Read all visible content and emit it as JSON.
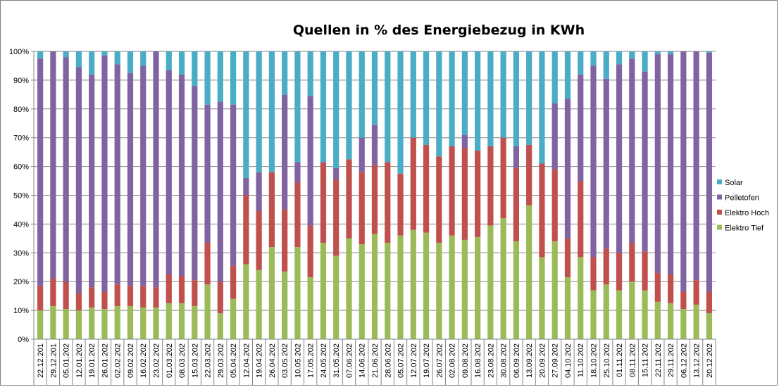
{
  "chart_data": {
    "type": "bar",
    "stacked": "percent",
    "title": "Quellen in % des Energiebezug in KWh",
    "xlabel": "",
    "ylabel": "",
    "ylim": [
      0,
      100
    ],
    "y_ticks": [
      "0%",
      "10%",
      "20%",
      "30%",
      "40%",
      "50%",
      "60%",
      "70%",
      "80%",
      "90%",
      "100%"
    ],
    "grid": true,
    "legend_position": "right",
    "categories": [
      "22.12.201",
      "29.12.201",
      "05.01.202",
      "12.01.202",
      "19.01.202",
      "26.01.202",
      "02.02.202",
      "09.02.202",
      "16.02.202",
      "23.02.202",
      "01.03.202",
      "08.03.202",
      "15.03.202",
      "22.03.202",
      "29.03.202",
      "05.04.202",
      "12.04.202",
      "19.04.202",
      "26.04.202",
      "03.05.202",
      "10.05.202",
      "17.05.202",
      "24.05.202",
      "31.05.202",
      "07.06.202",
      "14.06.202",
      "21.06.202",
      "28.06.202",
      "05.07.202",
      "12.07.202",
      "19.07.202",
      "26.07.202",
      "02.08.202",
      "09.08.202",
      "16.08.202",
      "23.08.202",
      "30.08.202",
      "06.09.202",
      "13.09.202",
      "20.09.202",
      "27.09.202",
      "04.10.202",
      "11.10.202",
      "18.10.202",
      "25.10.202",
      "01.11.202",
      "08.11.202",
      "15.11.202",
      "22.11.202",
      "29.11.202",
      "06.12.202",
      "13.12.202",
      "20.12.202"
    ],
    "series": [
      {
        "name": "Elektro Tief",
        "color": "#9bbb59",
        "values": [
          10,
          11.5,
          10.5,
          10,
          11,
          10.5,
          11.5,
          11.5,
          11,
          11,
          12.5,
          12.5,
          11.5,
          19,
          9,
          14,
          26,
          24,
          32,
          23.5,
          32,
          21.5,
          33.5,
          29,
          35,
          33,
          36.5,
          33.5,
          36,
          38,
          37,
          33.5,
          36,
          34.5,
          35.5,
          39.5,
          42,
          34,
          46.5,
          28.5,
          34,
          21.5,
          28.5,
          17,
          19,
          17,
          20,
          17,
          13,
          12.5,
          10.5,
          12,
          9
        ]
      },
      {
        "name": "Elektro Hoch",
        "color": "#c0504d",
        "values": [
          8.5,
          9.5,
          9.5,
          6,
          7,
          6,
          7.5,
          7,
          7.5,
          7,
          10,
          9.5,
          9,
          14.5,
          11,
          11.5,
          24,
          20.5,
          26,
          21.5,
          22.5,
          18,
          28,
          26.5,
          27.5,
          25,
          24,
          28,
          21.5,
          32,
          30.5,
          30,
          31,
          32,
          30,
          27.5,
          28,
          25.5,
          21,
          32.5,
          25,
          13.5,
          26.5,
          11.5,
          12.5,
          13,
          13.5,
          13.5,
          10,
          10,
          6,
          8.5,
          7.5
        ]
      },
      {
        "name": "Pelletofen",
        "color": "#8064a2",
        "values": [
          79,
          79,
          78,
          78.5,
          74,
          82,
          76.5,
          74,
          76.5,
          82,
          71,
          70,
          67.5,
          48,
          62.5,
          56,
          6,
          13.5,
          0,
          40,
          7,
          45,
          0,
          4,
          0,
          12,
          14,
          0,
          0,
          0,
          0,
          0,
          0,
          4.5,
          0,
          0,
          0,
          7.5,
          0,
          0,
          23,
          48.5,
          37,
          66.5,
          59,
          65.5,
          64,
          62.5,
          76,
          76.5,
          83.5,
          79.5,
          83
        ]
      },
      {
        "name": "Solar",
        "color": "#4bacc6",
        "values": [
          2.5,
          0,
          2,
          5.5,
          8,
          1.5,
          4.5,
          7.5,
          5,
          0,
          6.5,
          8,
          12,
          18.5,
          17.5,
          18.5,
          44,
          42,
          42,
          15,
          38.5,
          15.5,
          38.5,
          40.5,
          37.5,
          30,
          25.5,
          38.5,
          42.5,
          30,
          32.5,
          36.5,
          33,
          29,
          34.5,
          33,
          30,
          33,
          32.5,
          39,
          18,
          16.5,
          8,
          5,
          9.5,
          4.5,
          2.5,
          7,
          1,
          1,
          0,
          0,
          0.5
        ]
      }
    ]
  }
}
